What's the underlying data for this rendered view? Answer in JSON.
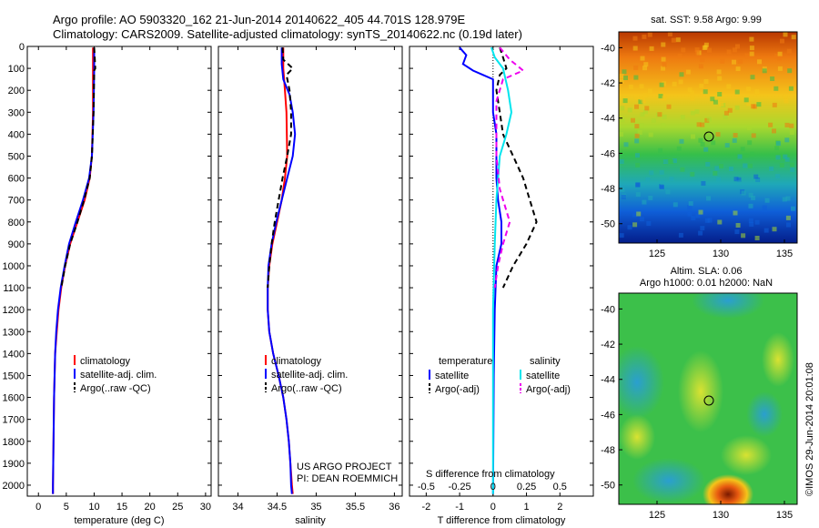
{
  "header": {
    "line1": "Argo profile: AO 5903320_162 21-Jun-2014 20140622_405 44.701S 128.979E",
    "line2": "Climatology: CARS2009. Satellite-adjusted climatology: synTS_20140622.nc (0.19d later)"
  },
  "stamp": "©IMOS 29-Jun-2014 20:01:08",
  "colors": {
    "climatology": "#ff0000",
    "satellite": "#0000ff",
    "argo": "#000000",
    "satellite_salinity": "#00e5ee",
    "argo_salinity": "#ee00ee"
  },
  "chart_data": [
    {
      "type": "line",
      "xlabel": "temperature (deg C)",
      "ylabel": "",
      "xlim": [
        -2,
        31
      ],
      "ylim": [
        2050,
        0
      ],
      "xticks": [
        "0",
        "5",
        "10",
        "15",
        "20",
        "25",
        "30"
      ],
      "yticks": [
        "0",
        "100",
        "200",
        "300",
        "400",
        "500",
        "600",
        "700",
        "800",
        "900",
        "1000",
        "1100",
        "1200",
        "1300",
        "1400",
        "1500",
        "1600",
        "1700",
        "1800",
        "1900",
        "2000"
      ],
      "legend": [
        "climatology",
        "satellite-adj. clim.",
        "Argo(..raw -QC)"
      ],
      "series": [
        {
          "name": "climatology",
          "color": "#ff0000",
          "points": [
            [
              9.8,
              5
            ],
            [
              9.8,
              100
            ],
            [
              9.8,
              300
            ],
            [
              9.6,
              500
            ],
            [
              9.2,
              600
            ],
            [
              8.3,
              700
            ],
            [
              7.0,
              800
            ],
            [
              5.7,
              900
            ],
            [
              4.8,
              1000
            ],
            [
              4.1,
              1100
            ],
            [
              3.6,
              1200
            ],
            [
              3.3,
              1300
            ],
            [
              3.0,
              1400
            ],
            [
              2.9,
              1500
            ],
            [
              2.8,
              1600
            ],
            [
              2.7,
              1800
            ],
            [
              2.6,
              2000
            ],
            [
              2.6,
              2040
            ]
          ]
        },
        {
          "name": "satellite-adj. clim.",
          "color": "#0000ff",
          "points": [
            [
              10.0,
              5
            ],
            [
              10.0,
              100
            ],
            [
              9.9,
              300
            ],
            [
              9.6,
              500
            ],
            [
              9.1,
              600
            ],
            [
              8.0,
              700
            ],
            [
              6.7,
              800
            ],
            [
              5.5,
              900
            ],
            [
              4.7,
              1000
            ],
            [
              4.0,
              1100
            ],
            [
              3.5,
              1200
            ],
            [
              3.2,
              1300
            ],
            [
              3.0,
              1400
            ],
            [
              2.8,
              1600
            ],
            [
              2.7,
              1800
            ],
            [
              2.6,
              2000
            ],
            [
              2.6,
              2040
            ]
          ]
        },
        {
          "name": "Argo(..raw -QC)",
          "color": "#000000",
          "points": [
            [
              10.0,
              5
            ],
            [
              10.1,
              50
            ],
            [
              10.2,
              100
            ],
            [
              10.0,
              110
            ],
            [
              9.9,
              300
            ],
            [
              9.6,
              500
            ],
            [
              9.2,
              600
            ],
            [
              8.2,
              700
            ],
            [
              7.0,
              800
            ],
            [
              5.7,
              900
            ],
            [
              4.8,
              1000
            ],
            [
              4.1,
              1100
            ]
          ]
        }
      ]
    },
    {
      "type": "line",
      "xlabel": "salinity",
      "ylabel": "",
      "xlim": [
        33.75,
        36.1
      ],
      "ylim": [
        2050,
        0
      ],
      "xticks": [
        "34",
        "34.5",
        "35",
        "35.5",
        "36"
      ],
      "legend": [
        "climatology",
        "satellite-adj. clim.",
        "Argo(..raw -QC)"
      ],
      "annotation": [
        "US ARGO PROJECT",
        "PI: DEAN ROEMMICH"
      ],
      "series": [
        {
          "name": "climatology",
          "color": "#ff0000",
          "points": [
            [
              34.58,
              5
            ],
            [
              34.58,
              100
            ],
            [
              34.6,
              200
            ],
            [
              34.62,
              300
            ],
            [
              34.63,
              500
            ],
            [
              34.6,
              600
            ],
            [
              34.56,
              700
            ],
            [
              34.5,
              800
            ],
            [
              34.44,
              900
            ],
            [
              34.4,
              1000
            ],
            [
              34.38,
              1100
            ],
            [
              34.38,
              1200
            ],
            [
              34.4,
              1300
            ],
            [
              34.45,
              1400
            ],
            [
              34.52,
              1500
            ],
            [
              34.58,
              1600
            ],
            [
              34.62,
              1700
            ],
            [
              34.65,
              1800
            ],
            [
              34.67,
              1900
            ],
            [
              34.69,
              2000
            ],
            [
              34.7,
              2040
            ]
          ]
        },
        {
          "name": "satellite-adj. clim.",
          "color": "#0000ff",
          "points": [
            [
              34.56,
              5
            ],
            [
              34.56,
              80
            ],
            [
              34.58,
              150
            ],
            [
              34.66,
              220
            ],
            [
              34.7,
              300
            ],
            [
              34.73,
              400
            ],
            [
              34.7,
              500
            ],
            [
              34.63,
              600
            ],
            [
              34.56,
              700
            ],
            [
              34.49,
              800
            ],
            [
              34.43,
              900
            ],
            [
              34.39,
              1000
            ],
            [
              34.38,
              1100
            ],
            [
              34.38,
              1200
            ],
            [
              34.4,
              1300
            ],
            [
              34.45,
              1400
            ],
            [
              34.52,
              1500
            ],
            [
              34.58,
              1600
            ],
            [
              34.62,
              1700
            ],
            [
              34.65,
              1800
            ],
            [
              34.67,
              1900
            ],
            [
              34.68,
              2000
            ],
            [
              34.69,
              2040
            ]
          ]
        },
        {
          "name": "Argo(..raw -QC)",
          "color": "#000000",
          "points": [
            [
              34.57,
              5
            ],
            [
              34.58,
              60
            ],
            [
              34.7,
              100
            ],
            [
              34.62,
              130
            ],
            [
              34.66,
              200
            ],
            [
              34.68,
              300
            ],
            [
              34.68,
              400
            ],
            [
              34.63,
              500
            ],
            [
              34.57,
              600
            ],
            [
              34.52,
              700
            ],
            [
              34.47,
              800
            ],
            [
              34.43,
              900
            ],
            [
              34.4,
              1000
            ],
            [
              34.38,
              1100
            ]
          ]
        }
      ]
    },
    {
      "type": "line",
      "xlabel": "T difference from climatology",
      "xlabel_secondary": "S difference from climatology",
      "xlim": [
        -2.5,
        3.0
      ],
      "ylim": [
        2050,
        0
      ],
      "xticks": [
        "-2",
        "-1",
        "0",
        "1",
        "2"
      ],
      "xticks_secondary": [
        "-0.5",
        "-0.25",
        "0",
        "0.25",
        "0.5"
      ],
      "legend_temperature_title": "temperature",
      "legend_salinity_title": "salinity",
      "legend": [
        "satellite",
        "Argo(-adj)",
        "satellite",
        "Argo(-adj)"
      ],
      "series": [
        {
          "name": "satellite",
          "color": "#0000ff",
          "points": [
            [
              -1.0,
              5
            ],
            [
              -0.8,
              40
            ],
            [
              -0.9,
              80
            ],
            [
              -0.6,
              110
            ],
            [
              -0.3,
              130
            ],
            [
              0.0,
              150
            ],
            [
              0.0,
              300
            ],
            [
              0.1,
              400
            ],
            [
              0.1,
              600
            ],
            [
              0.15,
              700
            ],
            [
              0.25,
              800
            ],
            [
              0.25,
              900
            ],
            [
              0.1,
              1000
            ],
            [
              0.05,
              1200
            ],
            [
              0.02,
              1500
            ],
            [
              0.0,
              2040
            ]
          ]
        },
        {
          "name": "Argo(-adj)",
          "color": "#000000",
          "points": [
            [
              0.2,
              5
            ],
            [
              0.3,
              50
            ],
            [
              0.4,
              100
            ],
            [
              0.2,
              130
            ],
            [
              0.1,
              200
            ],
            [
              0.2,
              300
            ],
            [
              0.3,
              400
            ],
            [
              0.6,
              500
            ],
            [
              0.9,
              600
            ],
            [
              1.1,
              700
            ],
            [
              1.3,
              800
            ],
            [
              1.0,
              900
            ],
            [
              0.6,
              1000
            ],
            [
              0.3,
              1100
            ]
          ]
        },
        {
          "name": "satellite",
          "color": "#00e5ee",
          "points": [
            [
              -0.05,
              5
            ],
            [
              0.05,
              50
            ],
            [
              0.3,
              100
            ],
            [
              0.45,
              200
            ],
            [
              0.55,
              300
            ],
            [
              0.4,
              400
            ],
            [
              0.2,
              500
            ],
            [
              0.1,
              700
            ],
            [
              0.05,
              900
            ],
            [
              0.0,
              1200
            ],
            [
              0.0,
              1500
            ],
            [
              0.0,
              2040
            ]
          ]
        },
        {
          "name": "Argo(-adj)",
          "color": "#ee00ee",
          "points": [
            [
              0.2,
              5
            ],
            [
              0.5,
              60
            ],
            [
              0.9,
              110
            ],
            [
              0.3,
              150
            ],
            [
              0.1,
              250
            ],
            [
              0.1,
              500
            ],
            [
              0.2,
              650
            ],
            [
              0.5,
              800
            ],
            [
              0.3,
              900
            ],
            [
              0.15,
              1000
            ],
            [
              0.05,
              1100
            ]
          ]
        }
      ]
    },
    {
      "type": "heatmap",
      "title": "sat. SST: 9.58 Argo: 9.99",
      "xticks": [
        "125",
        "130",
        "135"
      ],
      "yticks": [
        "-40",
        "-42",
        "-44",
        "-46",
        "-48",
        "-50"
      ],
      "marker": {
        "lon": 128.979,
        "lat": -44.701
      }
    },
    {
      "type": "heatmap",
      "title": "Altim. SLA: 0.06",
      "subtitle": "Argo h1000: 0.01 h2000: NaN",
      "xticks": [
        "125",
        "130",
        "135"
      ],
      "yticks": [
        "-40",
        "-42",
        "-44",
        "-46",
        "-48",
        "-50"
      ],
      "marker": {
        "lon": 128.979,
        "lat": -44.701
      }
    }
  ]
}
